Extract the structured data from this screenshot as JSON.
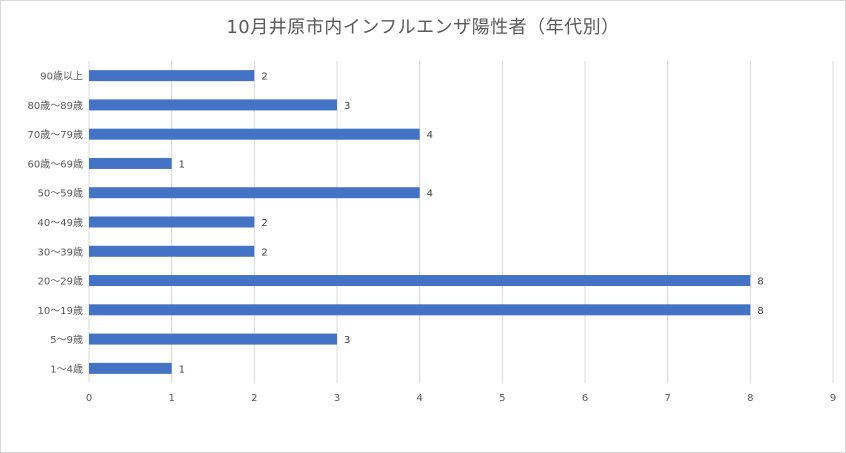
{
  "chart_data": {
    "type": "bar",
    "orientation": "horizontal",
    "title": "10月井原市内インフルエンザ陽性者（年代別）",
    "categories": [
      "90歳以上",
      "80歳〜89歳",
      "70歳〜79歳",
      "60歳〜69歳",
      "50〜59歳",
      "40〜49歳",
      "30〜39歳",
      "20〜29歳",
      "10〜19歳",
      "5〜9歳",
      "1〜4歳"
    ],
    "values": [
      2,
      3,
      4,
      1,
      4,
      2,
      2,
      8,
      8,
      3,
      1
    ],
    "xlim": [
      0,
      9
    ],
    "xticks": [
      0,
      1,
      2,
      3,
      4,
      5,
      6,
      7,
      8,
      9
    ],
    "grid": "vertical",
    "legend": "none",
    "bar_color": "#4472c4",
    "grid_color": "#d9d9d9",
    "text_color": "#595959"
  }
}
